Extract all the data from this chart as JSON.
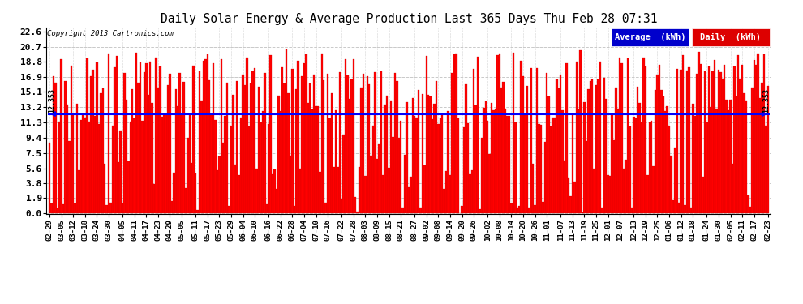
{
  "title": "Daily Solar Energy & Average Production Last 365 Days Thu Feb 28 07:31",
  "average": 12.353,
  "bar_color": "#FF0000",
  "average_line_color": "#0000FF",
  "background_color": "#FFFFFF",
  "grid_color": "#BBBBBB",
  "yticks": [
    0.0,
    1.9,
    3.8,
    5.6,
    7.5,
    9.4,
    11.3,
    13.2,
    15.1,
    16.9,
    18.8,
    20.7,
    22.6
  ],
  "ymax": 22.6,
  "ymin": 0.0,
  "copyright_text": "Copyright 2013 Cartronics.com",
  "legend_avg_label": "Average  (kWh)",
  "legend_daily_label": "Daily  (kWh)",
  "avg_annotation": "12.353",
  "x_tick_labels": [
    "02-29",
    "03-05",
    "03-12",
    "03-18",
    "03-24",
    "03-30",
    "04-05",
    "04-11",
    "04-17",
    "04-23",
    "04-29",
    "05-05",
    "05-11",
    "05-17",
    "05-23",
    "05-29",
    "06-04",
    "06-10",
    "06-16",
    "06-22",
    "06-28",
    "07-04",
    "07-10",
    "07-16",
    "07-22",
    "07-28",
    "08-03",
    "08-09",
    "08-15",
    "08-21",
    "08-27",
    "09-02",
    "09-08",
    "09-14",
    "09-20",
    "09-26",
    "10-02",
    "10-08",
    "10-14",
    "10-20",
    "10-26",
    "11-01",
    "11-07",
    "11-13",
    "11-19",
    "11-25",
    "12-01",
    "12-07",
    "12-13",
    "12-19",
    "12-25",
    "01-06",
    "01-12",
    "01-18",
    "01-24",
    "01-30",
    "02-05",
    "02-11",
    "02-17",
    "02-23"
  ],
  "num_bars": 365,
  "seed": 17
}
